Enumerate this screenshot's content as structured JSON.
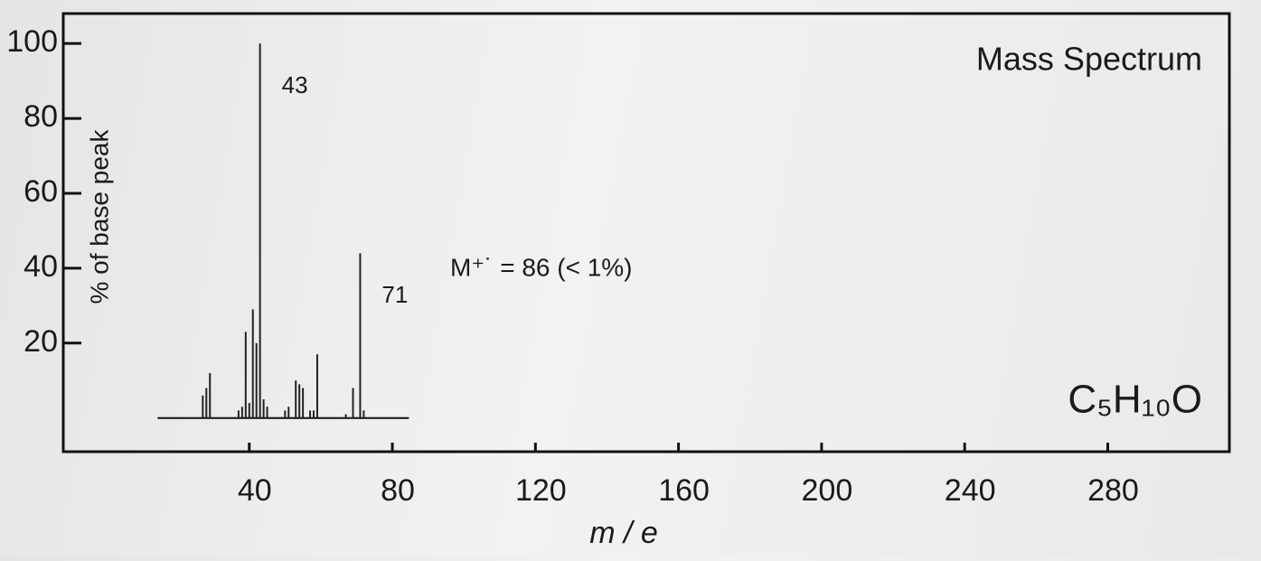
{
  "chart_data": {
    "type": "stick",
    "title": "Mass Spectrum",
    "formula": "C₅H₁₀O",
    "annotation": "M⁺˙ = 86  (< 1%)",
    "peak_labels": [
      "43",
      "71"
    ],
    "x_label": "m / e",
    "y_label": "% of base peak",
    "x": [
      27,
      28,
      29,
      37,
      38,
      39,
      40,
      41,
      42,
      43,
      44,
      45,
      50,
      51,
      53,
      54,
      55,
      57,
      58,
      59,
      67,
      69,
      71,
      72
    ],
    "values": [
      6,
      8,
      12,
      2,
      3,
      23,
      4,
      29,
      20,
      100,
      5,
      3,
      2,
      3,
      10,
      9,
      8,
      2,
      2,
      17,
      1,
      8,
      44,
      2
    ],
    "color": "#222222",
    "xlim": [
      -12,
      314
    ],
    "ylim": [
      -9,
      108
    ],
    "xticks": [
      40,
      80,
      120,
      160,
      200,
      240,
      280
    ],
    "yticks": [
      20,
      40,
      60,
      80,
      100
    ]
  }
}
